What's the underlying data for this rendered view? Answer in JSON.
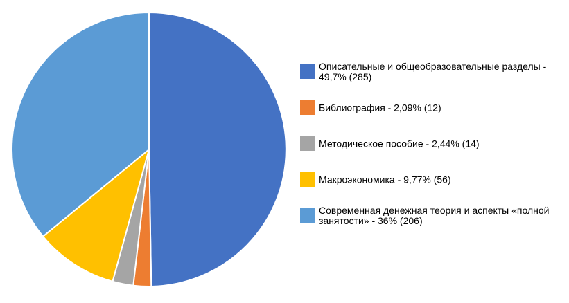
{
  "chart_data": {
    "type": "pie",
    "title": "",
    "legend_position": "right",
    "slices": [
      {
        "label_lines": [
          "Описательные и общеобразовательные разделы -",
          "49,7% (285)"
        ],
        "value": 285,
        "percent": 49.7,
        "color": "#4472C4"
      },
      {
        "label_lines": [
          "Библиография - 2,09% (12)"
        ],
        "value": 12,
        "percent": 2.09,
        "color": "#ED7D31"
      },
      {
        "label_lines": [
          "Методическое пособие - 2,44% (14)"
        ],
        "value": 14,
        "percent": 2.44,
        "color": "#A5A5A5"
      },
      {
        "label_lines": [
          "Макроэкономика - 9,77% (56)"
        ],
        "value": 56,
        "percent": 9.77,
        "color": "#FFC000"
      },
      {
        "label_lines": [
          "Современная денежная теория и аспекты «полной",
          "занятости» - 36% (206)"
        ],
        "value": 206,
        "percent": 36,
        "color": "#5B9BD5"
      }
    ]
  }
}
